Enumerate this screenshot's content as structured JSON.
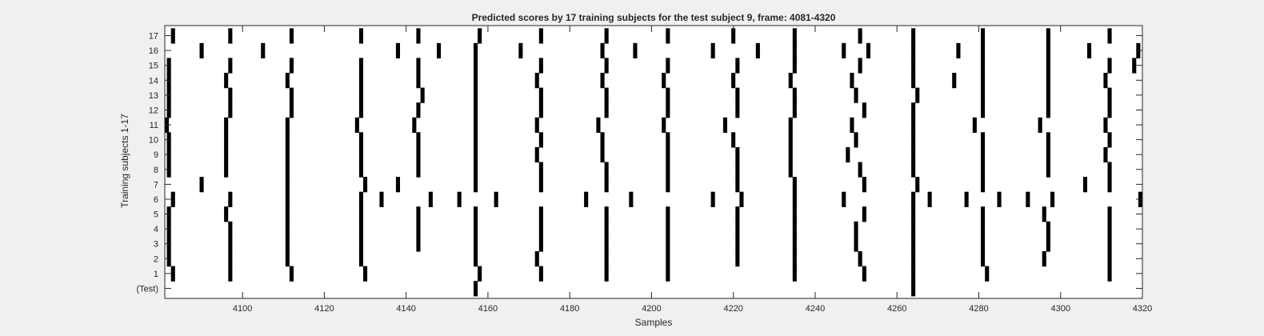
{
  "chart_data": {
    "type": "raster",
    "title": "Predicted scores by 17 training subjects for the test subject 9, frame: 4081-4320",
    "xlabel": "Samples",
    "ylabel": "Training subjects 1-17",
    "xlim": [
      4081,
      4320
    ],
    "xticks": [
      4100,
      4120,
      4140,
      4160,
      4180,
      4200,
      4220,
      4240,
      4260,
      4280,
      4300,
      4320
    ],
    "ytick_labels": [
      "(Test)",
      "1",
      "2",
      "3",
      "4",
      "5",
      "6",
      "7",
      "8",
      "9",
      "10",
      "11",
      "12",
      "13",
      "14",
      "15",
      "16",
      "17"
    ],
    "grid": false,
    "mark_color": "#000000",
    "rows": [
      {
        "label": "(Test)",
        "events": [
          4157,
          4264
        ]
      },
      {
        "label": "1",
        "events": [
          4083,
          4097,
          4112,
          4130,
          4158,
          4173,
          4189,
          4204,
          4235,
          4252,
          4264,
          4282,
          4312
        ]
      },
      {
        "label": "2",
        "events": [
          4082,
          4097,
          4111,
          4129,
          4157,
          4172,
          4189,
          4204,
          4221,
          4235,
          4251,
          4264,
          4281,
          4296,
          4312
        ]
      },
      {
        "label": "3",
        "events": [
          4082,
          4097,
          4111,
          4129,
          4143,
          4157,
          4173,
          4189,
          4204,
          4221,
          4235,
          4250,
          4264,
          4281,
          4297,
          4312
        ]
      },
      {
        "label": "4",
        "events": [
          4082,
          4097,
          4111,
          4129,
          4143,
          4157,
          4173,
          4189,
          4204,
          4221,
          4235,
          4250,
          4264,
          4281,
          4297,
          4312
        ]
      },
      {
        "label": "5",
        "events": [
          4082,
          4096,
          4111,
          4129,
          4143,
          4157,
          4173,
          4189,
          4204,
          4221,
          4235,
          4252,
          4264,
          4281,
          4296,
          4312
        ]
      },
      {
        "label": "6",
        "events": [
          4083,
          4097,
          4111,
          4129,
          4134,
          4146,
          4153,
          4162,
          4184,
          4195,
          4215,
          4222,
          4235,
          4247,
          4264,
          4268,
          4277,
          4285,
          4292,
          4298,
          4320
        ]
      },
      {
        "label": "7",
        "events": [
          4090,
          4111,
          4130,
          4138,
          4157,
          4173,
          4189,
          4204,
          4221,
          4235,
          4252,
          4265,
          4281,
          4306,
          4312
        ]
      },
      {
        "label": "8",
        "events": [
          4082,
          4096,
          4111,
          4129,
          4143,
          4157,
          4173,
          4189,
          4204,
          4221,
          4234,
          4251,
          4264,
          4281,
          4297,
          4312
        ]
      },
      {
        "label": "9",
        "events": [
          4082,
          4096,
          4111,
          4129,
          4143,
          4157,
          4172,
          4188,
          4204,
          4221,
          4234,
          4248,
          4264,
          4281,
          4297,
          4311
        ]
      },
      {
        "label": "10",
        "events": [
          4082,
          4096,
          4111,
          4129,
          4143,
          4157,
          4173,
          4188,
          4204,
          4220,
          4234,
          4250,
          4264,
          4281,
          4297,
          4312
        ]
      },
      {
        "label": "11",
        "events": [
          4081,
          4096,
          4111,
          4128,
          4142,
          4157,
          4172,
          4187,
          4203,
          4218,
          4234,
          4249,
          4264,
          4279,
          4295,
          4311
        ]
      },
      {
        "label": "12",
        "events": [
          4082,
          4097,
          4112,
          4129,
          4143,
          4157,
          4173,
          4189,
          4204,
          4221,
          4235,
          4252,
          4264,
          4281,
          4297,
          4312
        ]
      },
      {
        "label": "13",
        "events": [
          4082,
          4097,
          4112,
          4129,
          4144,
          4157,
          4173,
          4189,
          4204,
          4221,
          4235,
          4250,
          4265,
          4281,
          4297,
          4312
        ]
      },
      {
        "label": "14",
        "events": [
          4082,
          4096,
          4111,
          4129,
          4143,
          4157,
          4172,
          4188,
          4203,
          4220,
          4234,
          4249,
          4264,
          4274,
          4281,
          4297,
          4311
        ]
      },
      {
        "label": "15",
        "events": [
          4082,
          4097,
          4112,
          4129,
          4143,
          4157,
          4173,
          4189,
          4204,
          4221,
          4235,
          4251,
          4264,
          4281,
          4297,
          4312,
          4318
        ]
      },
      {
        "label": "16",
        "events": [
          4090,
          4105,
          4138,
          4148,
          4157,
          4168,
          4188,
          4196,
          4215,
          4226,
          4235,
          4247,
          4253,
          4264,
          4275,
          4281,
          4297,
          4307,
          4319
        ]
      },
      {
        "label": "17",
        "events": [
          4083,
          4097,
          4112,
          4129,
          4143,
          4158,
          4173,
          4189,
          4204,
          4220,
          4235,
          4251,
          4264,
          4281,
          4297,
          4312
        ]
      }
    ]
  }
}
